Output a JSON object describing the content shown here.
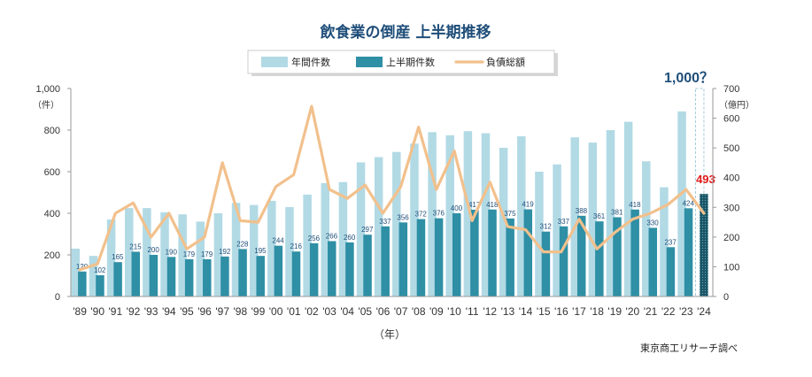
{
  "chart_data": {
    "type": "bar",
    "title": "飲食業の倒産 上半期推移",
    "categories": [
      "'89",
      "'90",
      "'91",
      "'92",
      "'93",
      "'94",
      "'95",
      "'96",
      "'97",
      "'98",
      "'99",
      "'00",
      "'01",
      "'02",
      "'03",
      "'04",
      "'05",
      "'06",
      "'07",
      "'08",
      "'09",
      "'10",
      "'11",
      "'12",
      "'13",
      "'14",
      "'15",
      "'16",
      "'17",
      "'18",
      "'19",
      "'20",
      "'21",
      "'22",
      "'23",
      "'24"
    ],
    "xlabel": "（年）",
    "ylabel_left_unit": "（件）",
    "ylabel_right_unit": "（億円）",
    "ylim_left": [
      0,
      1000
    ],
    "ylim_right": [
      0,
      700
    ],
    "yticks_left": [
      "0",
      "200",
      "400",
      "600",
      "800",
      "1,000"
    ],
    "yticks_right": [
      "0",
      "100",
      "200",
      "300",
      "400",
      "500",
      "600",
      "700"
    ],
    "legend_position": "top",
    "grid": false,
    "series": [
      {
        "name": "年間件数",
        "kind": "bar",
        "axis": "left",
        "color": "#b2dae5",
        "values": [
          230,
          195,
          370,
          425,
          425,
          405,
          395,
          360,
          400,
          450,
          440,
          460,
          430,
          490,
          545,
          550,
          645,
          670,
          695,
          735,
          790,
          775,
          795,
          785,
          715,
          770,
          600,
          635,
          765,
          740,
          800,
          840,
          650,
          525,
          890,
          null
        ]
      },
      {
        "name": "上半期件数",
        "kind": "bar",
        "axis": "left",
        "color": "#2e8fa5",
        "values": [
          120,
          102,
          165,
          215,
          200,
          190,
          179,
          179,
          192,
          228,
          195,
          244,
          216,
          256,
          266,
          260,
          297,
          337,
          356,
          372,
          376,
          400,
          417,
          418,
          375,
          419,
          312,
          337,
          388,
          361,
          381,
          418,
          330,
          237,
          424,
          493
        ],
        "labels": [
          "120",
          "102",
          "165",
          "215",
          "200",
          "190",
          "179",
          "179",
          "192",
          "228",
          "195",
          "244",
          "216",
          "256",
          "266",
          "260",
          "297",
          "337",
          "356",
          "372",
          "376",
          "400",
          "417",
          "418",
          "375",
          "419",
          "312",
          "337",
          "388",
          "361",
          "381",
          "418",
          "330",
          "237",
          "424",
          "493"
        ]
      },
      {
        "name": "負債総額",
        "kind": "line",
        "axis": "right",
        "color": "#f2c08c",
        "values": [
          90,
          110,
          280,
          315,
          200,
          280,
          160,
          200,
          450,
          255,
          250,
          370,
          410,
          640,
          360,
          330,
          375,
          280,
          370,
          570,
          360,
          490,
          255,
          385,
          235,
          225,
          150,
          150,
          260,
          160,
          215,
          260,
          280,
          310,
          360,
          280
        ]
      }
    ],
    "annotations": {
      "forecast": "1,000？",
      "last_value": "493"
    },
    "source": "東京商工リサーチ調べ"
  }
}
